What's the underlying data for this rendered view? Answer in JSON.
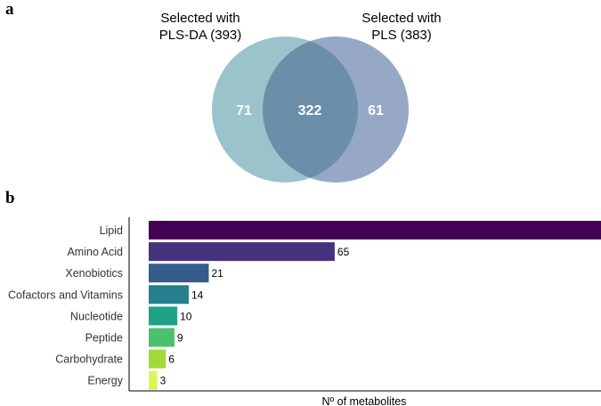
{
  "panel_a": {
    "label": "a",
    "sets": [
      {
        "title_line1": "Selected with",
        "title_line2": "PLS-DA (393)",
        "color": "#9bc3cb"
      },
      {
        "title_line1": "Selected with",
        "title_line2": "PLS (383)",
        "color": "#97a8c6"
      }
    ],
    "overlap_color": "#6b8fa9",
    "counts": {
      "left_only": "71",
      "both": "322",
      "right_only": "61"
    }
  },
  "panel_b": {
    "label": "b",
    "chart_data": {
      "type": "bar",
      "orientation": "horizontal",
      "categories": [
        "Lipid",
        "Amino Acid",
        "Xenobiotics",
        "Cofactors and Vitamins",
        "Nucleotide",
        "Peptide",
        "Carbohydrate",
        "Energy"
      ],
      "values": [
        159,
        65,
        21,
        14,
        10,
        9,
        6,
        3
      ],
      "colors": [
        "#440154",
        "#46337e",
        "#365c8d",
        "#277f8e",
        "#1fa187",
        "#4ac16d",
        "#a0da39",
        "#dcf55a"
      ],
      "title": "",
      "xlabel": "Nº of metabolites",
      "ylabel": "",
      "xlim": [
        0,
        165
      ]
    }
  }
}
